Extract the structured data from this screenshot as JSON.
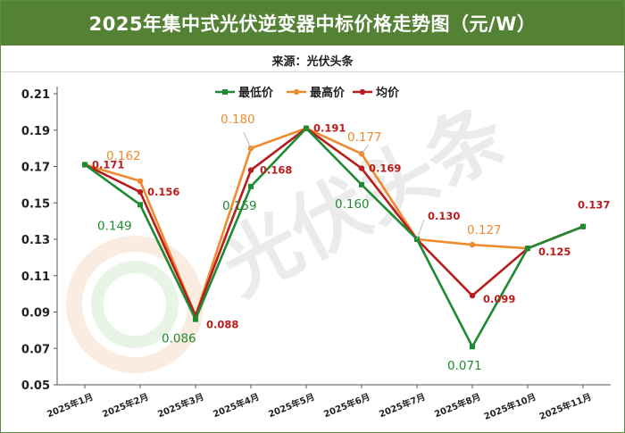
{
  "title": "2025年集中式光伏逆变器中标价格走势图（元/W）",
  "source": "来源：光伏头条",
  "watermark": "光伏头条",
  "chart_data": {
    "type": "line",
    "categories": [
      "2025年1月",
      "2025年2月",
      "2025年3月",
      "2025年4月",
      "2025年5月",
      "2025年6月",
      "2025年7月",
      "2025年8月",
      "2025年10月",
      "2025年11月"
    ],
    "ylim": [
      0.05,
      0.21
    ],
    "yticks": [
      "0.21",
      "0.19",
      "0.17",
      "0.15",
      "0.13",
      "0.11",
      "0.09",
      "0.07",
      "0.05"
    ],
    "grid": false,
    "legend_position": "top",
    "series": [
      {
        "name": "最低价",
        "color": "#1e8a32",
        "values": [
          0.171,
          0.149,
          0.086,
          0.159,
          0.191,
          0.16,
          0.13,
          0.071,
          0.125,
          0.137
        ],
        "labels": [
          "",
          "0.149",
          "0.086",
          "0.159",
          "",
          "0.160",
          "",
          "0.071",
          "",
          ""
        ]
      },
      {
        "name": "最高价",
        "color": "#f08a2e",
        "values": [
          0.171,
          0.162,
          0.088,
          0.18,
          0.191,
          0.177,
          0.13,
          0.127,
          0.125,
          0.137
        ],
        "labels": [
          "",
          "0.162",
          "",
          "0.180",
          "",
          "0.177",
          "",
          "0.127",
          "",
          ""
        ]
      },
      {
        "name": "均价",
        "color": "#b81d1d",
        "values": [
          0.171,
          0.156,
          0.088,
          0.168,
          0.191,
          0.169,
          0.13,
          0.099,
          0.125,
          0.137
        ],
        "labels": [
          "0.171",
          "0.156",
          "0.088",
          "0.168",
          "0.191",
          "0.169",
          "0.130",
          "0.099",
          "0.125",
          "0.137"
        ]
      }
    ]
  }
}
